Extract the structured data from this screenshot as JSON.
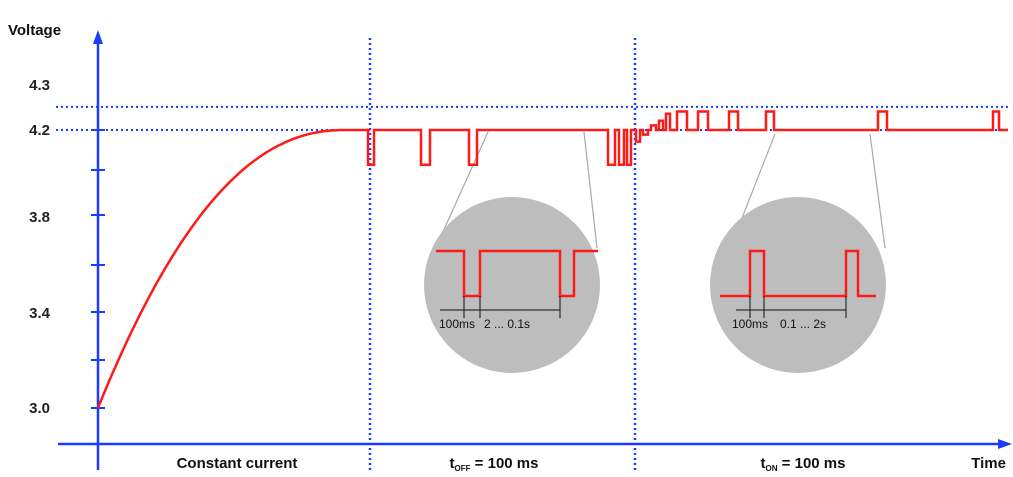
{
  "chart_data": {
    "type": "line",
    "title": "",
    "ylabel": "Voltage",
    "xlabel": "Time",
    "yticks": [
      "3.0",
      "3.4",
      "3.8",
      "4.2",
      "4.3"
    ],
    "ylim": [
      2.85,
      4.45
    ],
    "reference_lines": [
      4.2,
      4.3
    ],
    "phases": [
      {
        "name": "Constant current",
        "sub": "",
        "suffix": ""
      },
      {
        "name": "t",
        "sub": "OFF",
        "suffix": " = 100 ms"
      },
      {
        "name": "t",
        "sub": "ON",
        "suffix": " = 100 ms"
      }
    ],
    "series": [
      {
        "color": "#ff1a1a",
        "cc_start_v": 3.0,
        "cc_end_v": 4.2,
        "base_v": 4.2,
        "dip_v": 4.05,
        "spike_v": 4.28
      }
    ],
    "insets": [
      {
        "span_label": "100ms",
        "gap_label": "2 ... 0.1s"
      },
      {
        "span_label": "100ms",
        "gap_label": "0.1 ... 2s"
      }
    ],
    "colors": {
      "axis": "#1a3cff",
      "curve": "#ff1a1a",
      "inset": "#bdbdbd",
      "guide": "#aaaaaa"
    }
  }
}
